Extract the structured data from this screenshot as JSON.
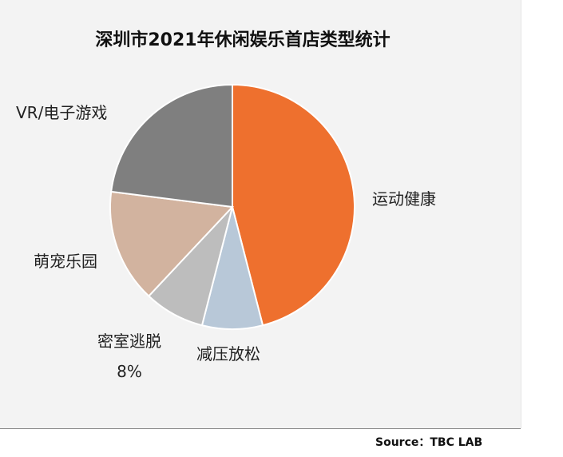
{
  "chart_data": {
    "type": "pie",
    "title": "深圳市2021年休闲娱乐首店类型统计",
    "categories": [
      "运动健康",
      "减压放松",
      "密室逃脱",
      "萌宠乐园",
      "VR/电子游戏"
    ],
    "values": [
      46,
      8,
      8,
      15,
      23
    ],
    "data_labels": [
      "",
      "",
      "8%",
      "",
      ""
    ],
    "colors": [
      "#ee702e",
      "#b8c8d8",
      "#bdbdbd",
      "#d2b39f",
      "#7f7f7f"
    ],
    "legend": "none",
    "start_angle_deg": 0,
    "direction": "clockwise"
  },
  "source_text": "Source：TBC LAB"
}
